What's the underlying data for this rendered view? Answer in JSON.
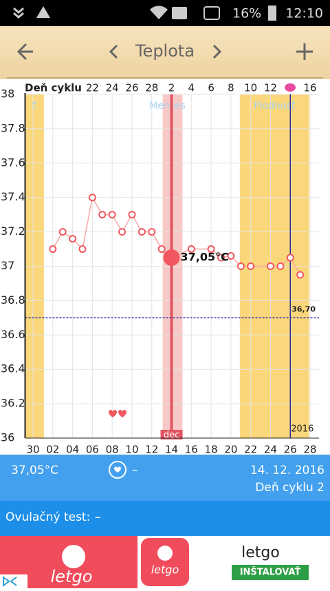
{
  "status_bar": {
    "battery": "16%",
    "time": "12:10"
  },
  "header": {
    "title": "Teplota"
  },
  "chart_data": {
    "type": "line",
    "top_axis_title": "Deň cyklu",
    "x": [
      2,
      3,
      4,
      5,
      6,
      7,
      8,
      9,
      10,
      11,
      12,
      13,
      14,
      16,
      18,
      19,
      20,
      21,
      22,
      24,
      25,
      26,
      27
    ],
    "values": [
      37.1,
      37.2,
      37.16,
      37.1,
      37.4,
      37.3,
      37.3,
      37.2,
      37.3,
      37.2,
      37.2,
      37.1,
      37.05,
      37.1,
      37.1,
      37.05,
      37.06,
      37.0,
      37.0,
      37.0,
      37.0,
      37.05,
      36.95
    ],
    "color": "#f0575f",
    "line_color": "#f6a6a2",
    "highlight": {
      "index": 12,
      "label": "37,05°C"
    },
    "xlim": [
      -0.8,
      28.9
    ],
    "xticks": [
      {
        "value": 0,
        "label": "30"
      },
      {
        "value": 2,
        "label": "02"
      },
      {
        "value": 4,
        "label": "04"
      },
      {
        "value": 6,
        "label": "06"
      },
      {
        "value": 8,
        "label": "08"
      },
      10,
      12,
      14,
      16,
      18,
      20,
      22,
      24,
      26,
      28
    ],
    "cycle_day_ticks": [
      {
        "value": 6,
        "label": "22"
      },
      {
        "value": 8,
        "label": "24"
      },
      {
        "value": 10,
        "label": "26"
      },
      {
        "value": 12,
        "label": "28"
      },
      {
        "value": 14,
        "label": "2"
      },
      {
        "value": 16,
        "label": "4"
      },
      {
        "value": 18,
        "label": "6"
      },
      {
        "value": 20,
        "label": "8"
      },
      {
        "value": 22,
        "label": "10"
      },
      {
        "value": 24,
        "label": "12"
      },
      {
        "value": 28,
        "label": "16"
      }
    ],
    "ylim": [
      36,
      38
    ],
    "yticks": [
      38,
      37.8,
      37.6,
      37.4,
      37.2,
      37,
      36.8,
      36.6,
      36.4,
      36.2,
      36
    ],
    "grid": true,
    "fertile_bands": [
      {
        "from": -0.8,
        "to": 1.1,
        "label": "ť"
      },
      {
        "from": 20.9,
        "to": 27.9,
        "label": "Plodnosť"
      }
    ],
    "menses_band": {
      "from": 13.1,
      "to": 15.1,
      "line": 14,
      "label": "Menzes",
      "month_label": "dec"
    },
    "reference_line": {
      "value": 36.7,
      "label": "36,70",
      "color": "#2b2ba8"
    },
    "year_marker": {
      "x": 26,
      "label": "2016"
    }
  },
  "info": {
    "temperature": "37,05°C",
    "heart": "–",
    "date": "14. 12. 2016",
    "cycle_day": "Deň cyklu 2"
  },
  "ovulation": {
    "label": "Ovulačný test:",
    "value": "–"
  },
  "ad": {
    "logo_text": "letgo",
    "brand": "letgo",
    "button": "INŠTALOVAŤ"
  }
}
